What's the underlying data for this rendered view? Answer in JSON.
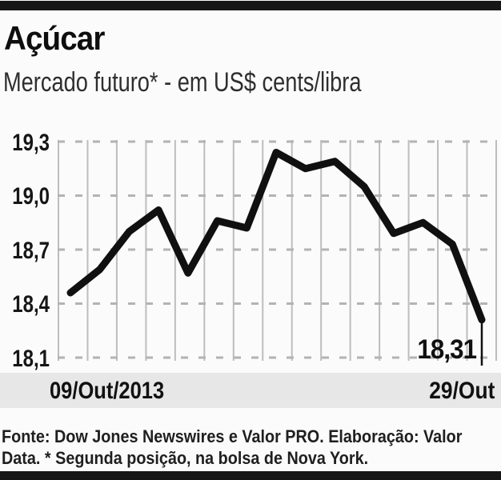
{
  "header": {
    "title": "Açúcar",
    "subtitle": "Mercado futuro* - em US$ cents/libra"
  },
  "chart_data": {
    "type": "line",
    "title": "Açúcar",
    "subtitle": "Mercado futuro* - em US$ cents/libra",
    "unit": "US$ cents/libra",
    "categories": [
      "09/Out/2013",
      "",
      "",
      "",
      "",
      "",
      "",
      "",
      "",
      "",
      "",
      "",
      "",
      "",
      "29/Out"
    ],
    "values": [
      18.46,
      18.59,
      18.8,
      18.92,
      18.57,
      18.86,
      18.82,
      19.24,
      19.15,
      19.19,
      19.05,
      18.79,
      18.85,
      18.73,
      18.31
    ],
    "ylim": [
      18.1,
      19.3
    ],
    "y_ticks": [
      19.3,
      19.0,
      18.7,
      18.4,
      18.1
    ],
    "y_tick_labels": [
      "19,3",
      "19,0",
      "18,7",
      "18,4",
      "18,1"
    ],
    "x_axis_labels": {
      "start": "09/Out/2013",
      "end": "29/Out"
    },
    "last_value_label": "18,31",
    "grid": {
      "vertical": "solid",
      "horizontal": "dashed",
      "vertical_line_count": 16
    },
    "legend": "none",
    "colors": {
      "line": "#101010",
      "vertical_grid": "#bdbdbd",
      "horizontal_grid": "#b3b3b3",
      "band_bg": "#e7e7e7",
      "rule_bar": "#161616"
    }
  },
  "footer": {
    "line1": "Fonte: Dow Jones Newswires e Valor PRO. Elaboração: Valor",
    "line2": "Data. * Segunda posição, na bolsa de Nova York."
  }
}
